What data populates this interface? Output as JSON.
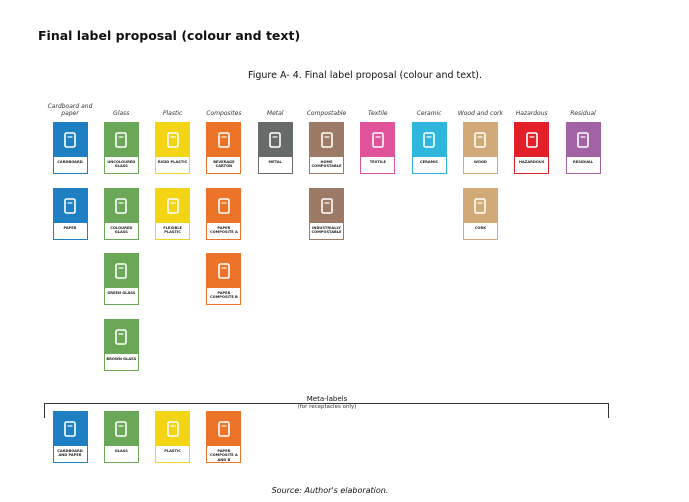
{
  "title": "Final label proposal (colour and text)",
  "figure_caption": "Figure A- 4. Final label proposal (colour and text).",
  "columns": [
    {
      "header": "Cardboard and paper",
      "color": "#1f7fc3",
      "labels": [
        "CARDBOARD",
        "PAPER"
      ]
    },
    {
      "header": "Glass",
      "color": "#6aa757",
      "labels": [
        "UNCOLOURED GLASS",
        "COLOURED GLASS",
        "GREEN GLASS",
        "BROWN GLASS"
      ]
    },
    {
      "header": "Plastic",
      "color": "#f4d516",
      "labels": [
        "RIGID PLASTIC",
        "FLEXIBLE PLASTIC"
      ]
    },
    {
      "header": "Composites",
      "color": "#ec7429",
      "labels": [
        "BEVERAGE CARTON",
        "PAPER COMPOSITE A",
        "PAPER COMPOSITE B"
      ]
    },
    {
      "header": "Metal",
      "color": "#666a68",
      "labels": [
        "METAL"
      ]
    },
    {
      "header": "Compostable",
      "color": "#9c7a65",
      "labels": [
        "HOME COMPOSTABLE",
        "INDUSTRIALLY COMPOSTABLE"
      ]
    },
    {
      "header": "Textile",
      "color": "#e0529a",
      "labels": [
        "TEXTILE"
      ]
    },
    {
      "header": "Ceramic",
      "color": "#2fb6dd",
      "labels": [
        "CERAMIC"
      ]
    },
    {
      "header": "Wood and cork",
      "color": "#d2aa78",
      "labels": [
        "WOOD",
        "CORK"
      ]
    },
    {
      "header": "Hazardous",
      "color": "#e3202a",
      "labels": [
        "HAZARDOUS"
      ]
    },
    {
      "header": "Residual",
      "color": "#a362a4",
      "labels": [
        "RESIDUAL"
      ]
    }
  ],
  "meta_labels": {
    "title": "Meta-labels",
    "subtitle": "(for receptacles only)",
    "labels": [
      {
        "text": "CARDBOARD AND PAPER",
        "color": "#1f7fc3"
      },
      {
        "text": "GLASS",
        "color": "#6aa757"
      },
      {
        "text": "PLASTIC",
        "color": "#f4d516"
      },
      {
        "text": "PAPER COMPOSITE A AND B",
        "color": "#ec7429"
      }
    ]
  },
  "source": "Source: Author's elaboration."
}
